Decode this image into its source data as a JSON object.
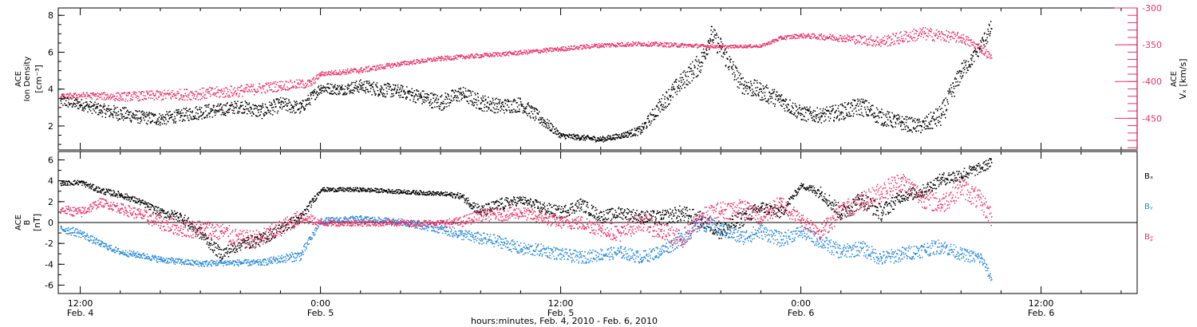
{
  "colors": {
    "black": "#000000",
    "pink": "#e8336b",
    "blue": "#2a8ad8"
  },
  "x_axis": {
    "label": "hours:minutes, Feb.  4, 2010 - Feb.  6, 2010",
    "major_ticks": [
      {
        "hours": 0,
        "time": "12:00",
        "date": "Feb. 4"
      },
      {
        "hours": 12,
        "time": "0:00",
        "date": "Feb. 5"
      },
      {
        "hours": 24,
        "time": "12:00",
        "date": "Feb. 5"
      },
      {
        "hours": 36,
        "time": "0:00",
        "date": "Feb. 6"
      },
      {
        "hours": 48,
        "time": "12:00",
        "date": "Feb. 6"
      }
    ],
    "range_hours": [
      -1.1,
      52.8
    ],
    "minor_tick_every_hours": 2
  },
  "chart_data": [
    {
      "type": "scatter",
      "panel": "top",
      "ylabel_lines": [
        "ACE",
        "Ion Density"
      ],
      "yunit": "[cm⁻³]",
      "ylim": [
        0.7,
        8.4
      ],
      "yticks": [
        2,
        4,
        6,
        8
      ],
      "right_axis": {
        "ylabel": "ACE",
        "yunit": "Vₓ [km/s]",
        "ylim": [
          -493,
          -300
        ],
        "yticks": [
          -300,
          -350,
          -400,
          -450
        ]
      },
      "series": [
        {
          "name": "Ion Density",
          "axis": "left",
          "color": "#000000",
          "x": [
            -1,
            0,
            1,
            2,
            3,
            4,
            5,
            6,
            7,
            8,
            9,
            10,
            11,
            12,
            13,
            14,
            15,
            16,
            17,
            18,
            19,
            20,
            21,
            22,
            23,
            24,
            25,
            26,
            27,
            28,
            29,
            30,
            31,
            31.5,
            32,
            33,
            34,
            35,
            36,
            37,
            38,
            39,
            40,
            41,
            42,
            43,
            44,
            44.5,
            45.5
          ],
          "y": [
            3.4,
            3.2,
            2.9,
            2.7,
            2.5,
            2.4,
            2.6,
            2.8,
            2.9,
            3.1,
            2.8,
            3.2,
            3.0,
            4.1,
            4.0,
            4.2,
            4.0,
            3.9,
            3.6,
            3.3,
            3.8,
            3.3,
            3.1,
            3.2,
            2.4,
            1.5,
            1.4,
            1.3,
            1.5,
            1.8,
            3.2,
            4.4,
            5.5,
            7.0,
            6.2,
            4.3,
            3.9,
            3.4,
            2.7,
            2.6,
            2.8,
            3.1,
            2.5,
            2.2,
            2.0,
            2.6,
            5.0,
            5.6,
            7.3
          ],
          "scatter": [
            0.35,
            0.3,
            0.35,
            0.4,
            0.35,
            0.35,
            0.35,
            0.4,
            0.35,
            0.35,
            0.4,
            0.4,
            0.35,
            0.3,
            0.3,
            0.35,
            0.4,
            0.35,
            0.4,
            0.45,
            0.4,
            0.45,
            0.4,
            0.4,
            0.35,
            0.15,
            0.15,
            0.15,
            0.15,
            0.25,
            0.45,
            0.5,
            0.6,
            0.5,
            0.6,
            0.5,
            0.5,
            0.45,
            0.4,
            0.4,
            0.45,
            0.5,
            0.45,
            0.4,
            0.4,
            0.6,
            0.5,
            0.35,
            0.5
          ]
        },
        {
          "name": "Vx",
          "axis": "right",
          "color": "#e8336b",
          "x": [
            -1,
            0,
            2,
            4,
            6,
            8,
            10,
            11.5,
            12,
            14,
            16,
            18,
            20,
            22,
            24,
            26,
            28,
            30,
            32,
            34,
            35,
            36,
            38,
            40,
            42,
            44,
            45,
            45.5
          ],
          "y": [
            -420,
            -418,
            -420,
            -418,
            -416,
            -412,
            -405,
            -402,
            -389,
            -384,
            -375,
            -368,
            -364,
            -360,
            -355,
            -350,
            -348,
            -350,
            -352,
            -351,
            -340,
            -337,
            -340,
            -345,
            -334,
            -340,
            -355,
            -367
          ],
          "scatter": [
            4,
            4,
            6,
            7,
            8,
            8,
            7,
            6,
            3,
            4,
            3,
            3,
            3,
            3,
            3,
            3,
            3,
            3,
            2,
            2,
            3,
            3,
            5,
            8,
            9,
            7,
            6,
            5
          ]
        }
      ]
    },
    {
      "type": "scatter",
      "panel": "bottom",
      "ylabel_lines": [
        "ACE",
        "B"
      ],
      "yunit": "[nT]",
      "ylim": [
        -6.8,
        6.8
      ],
      "yticks": [
        6,
        4,
        2,
        0,
        -2,
        -4,
        -6
      ],
      "legend": [
        {
          "label": "Bₓ",
          "color": "#000000"
        },
        {
          "label": "Bᵧ",
          "color": "#2a8ad8"
        },
        {
          "label": "B𝓏",
          "color": "#e8336b"
        }
      ],
      "series": [
        {
          "name": "Bx",
          "color": "#000000",
          "x": [
            -1,
            0,
            1,
            2,
            3,
            4,
            5,
            6,
            7,
            8,
            9,
            11,
            12,
            14,
            16,
            18,
            19,
            20,
            21,
            22,
            23,
            24,
            25,
            26,
            27,
            28,
            29,
            30,
            31,
            32,
            33,
            34,
            35,
            36,
            37,
            38,
            39,
            40,
            41,
            42,
            43,
            44,
            45,
            45.5
          ],
          "y": [
            3.8,
            3.9,
            3.1,
            2.7,
            2.0,
            1.0,
            0.6,
            -1.0,
            -3.0,
            -2.0,
            -1.6,
            0.5,
            3.2,
            3.2,
            3.0,
            2.8,
            2.6,
            1.1,
            1.8,
            2.2,
            1.5,
            1.0,
            1.8,
            0.6,
            1.0,
            0.6,
            0.5,
            0.9,
            0.3,
            -0.8,
            0.4,
            1.5,
            1.0,
            3.6,
            2.9,
            0.9,
            2.3,
            1.0,
            2.6,
            3.0,
            4.2,
            4.6,
            5.3,
            5.8
          ],
          "scatter": [
            0.2,
            0.25,
            0.3,
            0.3,
            0.3,
            0.4,
            0.5,
            0.6,
            0.6,
            0.6,
            0.6,
            0.5,
            0.2,
            0.2,
            0.2,
            0.2,
            0.3,
            0.6,
            0.6,
            0.4,
            0.6,
            0.6,
            0.6,
            0.6,
            0.6,
            0.6,
            0.7,
            0.8,
            0.8,
            0.8,
            0.8,
            0.6,
            0.6,
            0.2,
            0.6,
            0.8,
            0.8,
            0.8,
            0.6,
            0.6,
            0.6,
            0.7,
            0.5,
            0.5
          ]
        },
        {
          "name": "By",
          "color": "#2a8ad8",
          "x": [
            -1,
            0,
            1,
            2,
            3,
            4,
            5,
            6,
            7,
            8,
            9,
            11,
            12,
            14,
            16,
            18,
            19,
            20,
            21,
            22,
            23,
            24,
            25,
            26,
            27,
            28,
            29,
            30,
            31,
            32,
            33,
            34,
            35,
            36,
            37,
            38,
            39,
            40,
            41,
            42,
            43,
            44,
            45,
            45.5
          ],
          "y": [
            -0.5,
            -1.0,
            -2.0,
            -2.8,
            -3.1,
            -3.5,
            -3.7,
            -3.9,
            -3.8,
            -3.8,
            -3.8,
            -3.1,
            0.2,
            0.4,
            0.1,
            -0.6,
            -1.1,
            -1.5,
            -1.8,
            -2.5,
            -2.6,
            -3.0,
            -3.3,
            -3.0,
            -2.8,
            -3.3,
            -2.7,
            -1.5,
            0.0,
            -0.6,
            -1.4,
            -0.8,
            -1.6,
            -0.8,
            -1.8,
            -2.8,
            -2.4,
            -3.4,
            -3.0,
            -2.6,
            -2.2,
            -3.0,
            -3.4,
            -5.4
          ],
          "scatter": [
            0.4,
            0.4,
            0.3,
            0.3,
            0.3,
            0.3,
            0.3,
            0.3,
            0.3,
            0.3,
            0.3,
            0.5,
            0.3,
            0.3,
            0.3,
            0.4,
            0.5,
            0.6,
            0.6,
            0.6,
            0.6,
            0.6,
            0.6,
            0.6,
            0.6,
            0.6,
            0.6,
            0.7,
            0.7,
            0.7,
            0.7,
            0.7,
            0.7,
            0.6,
            0.7,
            0.7,
            0.7,
            0.7,
            0.7,
            0.7,
            0.7,
            0.6,
            0.6,
            0.4
          ]
        },
        {
          "name": "Bz",
          "color": "#e8336b",
          "x": [
            -1,
            0,
            1,
            2,
            3,
            4,
            5,
            6,
            7,
            8,
            9,
            11,
            12,
            14,
            16,
            18,
            19,
            20,
            21,
            22,
            23,
            24,
            25,
            26,
            27,
            28,
            29,
            30,
            31,
            32,
            33,
            34,
            35,
            36,
            37,
            38,
            39,
            40,
            41,
            42,
            43,
            44,
            45,
            45.5
          ],
          "y": [
            1.3,
            1.0,
            2.0,
            1.4,
            0.8,
            0.0,
            -0.5,
            -0.6,
            -0.8,
            -1.6,
            -1.5,
            0.6,
            0.0,
            0.0,
            0.0,
            0.0,
            0.1,
            0.8,
            0.8,
            1.0,
            0.5,
            0.1,
            0.0,
            -0.5,
            -1.0,
            0.2,
            -0.8,
            -1.6,
            0.5,
            1.2,
            1.4,
            0.6,
            1.8,
            0.3,
            -0.8,
            1.2,
            2.0,
            3.0,
            4.0,
            2.5,
            1.8,
            3.5,
            2.0,
            0.6
          ],
          "scatter": [
            0.4,
            0.5,
            0.4,
            0.5,
            0.6,
            0.7,
            0.8,
            0.9,
            0.9,
            0.9,
            0.9,
            0.7,
            0.3,
            0.3,
            0.3,
            0.3,
            0.5,
            0.6,
            0.6,
            0.6,
            0.6,
            0.6,
            0.7,
            0.8,
            0.8,
            0.9,
            0.9,
            0.9,
            0.9,
            0.9,
            0.9,
            0.9,
            0.9,
            0.6,
            0.8,
            0.9,
            0.9,
            1.0,
            1.0,
            1.0,
            1.0,
            1.0,
            1.0,
            1.0
          ]
        }
      ]
    }
  ]
}
